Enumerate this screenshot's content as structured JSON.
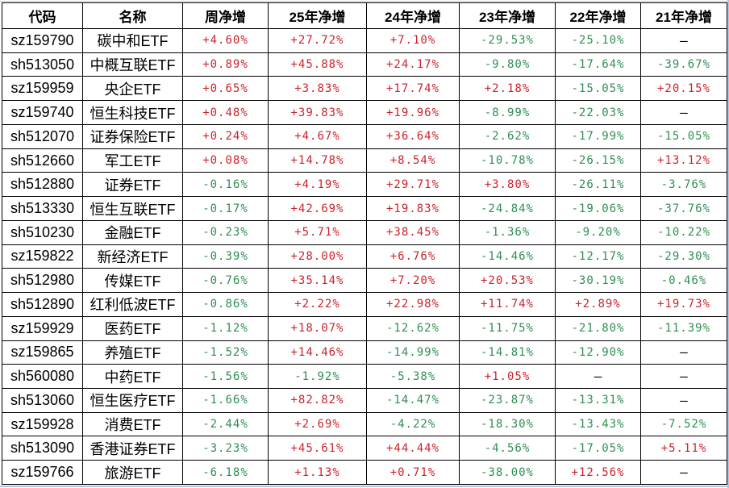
{
  "colors": {
    "positive": "#c9252d",
    "negative": "#2f8f52",
    "neutral": "#000000",
    "border": "#000000",
    "grid_hint": "#a9c6e3"
  },
  "chart_data": {
    "type": "table",
    "columns": [
      "代码",
      "名称",
      "周净增",
      "25年净增",
      "24年净增",
      "23年净增",
      "22年净增",
      "21年净增"
    ],
    "rows": [
      {
        "code": "sz159790",
        "name": "碳中和ETF",
        "values": [
          "+4.60%",
          "+27.72%",
          "+7.10%",
          "-29.53%",
          "-25.10%",
          "—"
        ]
      },
      {
        "code": "sh513050",
        "name": "中概互联ETF",
        "values": [
          "+0.89%",
          "+45.88%",
          "+24.17%",
          "-9.80%",
          "-17.64%",
          "-39.67%"
        ]
      },
      {
        "code": "sz159959",
        "name": "央企ETF",
        "values": [
          "+0.65%",
          "+3.83%",
          "+17.74%",
          "+2.18%",
          "-15.05%",
          "+20.15%"
        ]
      },
      {
        "code": "sz159740",
        "name": "恒生科技ETF",
        "values": [
          "+0.48%",
          "+39.83%",
          "+19.96%",
          "-8.99%",
          "-22.03%",
          "—"
        ]
      },
      {
        "code": "sh512070",
        "name": "证券保险ETF",
        "values": [
          "+0.24%",
          "+4.67%",
          "+36.64%",
          "-2.62%",
          "-17.99%",
          "-15.05%"
        ]
      },
      {
        "code": "sh512660",
        "name": "军工ETF",
        "values": [
          "+0.08%",
          "+14.78%",
          "+8.54%",
          "-10.78%",
          "-26.15%",
          "+13.12%"
        ]
      },
      {
        "code": "sh512880",
        "name": "证券ETF",
        "values": [
          "-0.16%",
          "+4.19%",
          "+29.71%",
          "+3.80%",
          "-26.11%",
          "-3.76%"
        ]
      },
      {
        "code": "sh513330",
        "name": "恒生互联ETF",
        "values": [
          "-0.17%",
          "+42.69%",
          "+19.83%",
          "-24.84%",
          "-19.06%",
          "-37.76%"
        ]
      },
      {
        "code": "sh510230",
        "name": "金融ETF",
        "values": [
          "-0.23%",
          "+5.71%",
          "+38.45%",
          "-1.36%",
          "-9.20%",
          "-10.22%"
        ]
      },
      {
        "code": "sz159822",
        "name": "新经济ETF",
        "values": [
          "-0.39%",
          "+28.00%",
          "+6.76%",
          "-14.46%",
          "-12.17%",
          "-29.30%"
        ]
      },
      {
        "code": "sh512980",
        "name": "传媒ETF",
        "values": [
          "-0.76%",
          "+35.14%",
          "+7.20%",
          "+20.53%",
          "-30.19%",
          "-0.46%"
        ]
      },
      {
        "code": "sh512890",
        "name": "红利低波ETF",
        "values": [
          "-0.86%",
          "+2.22%",
          "+22.98%",
          "+11.74%",
          "+2.89%",
          "+19.73%"
        ]
      },
      {
        "code": "sz159929",
        "name": "医药ETF",
        "values": [
          "-1.12%",
          "+18.07%",
          "-12.62%",
          "-11.75%",
          "-21.80%",
          "-11.39%"
        ]
      },
      {
        "code": "sz159865",
        "name": "养殖ETF",
        "values": [
          "-1.52%",
          "+14.46%",
          "-14.99%",
          "-14.81%",
          "-12.90%",
          "—"
        ]
      },
      {
        "code": "sh560080",
        "name": "中药ETF",
        "values": [
          "-1.56%",
          "-1.92%",
          "-5.38%",
          "+1.05%",
          "—",
          "—"
        ]
      },
      {
        "code": "sh513060",
        "name": "恒生医疗ETF",
        "values": [
          "-1.66%",
          "+82.82%",
          "-14.47%",
          "-23.87%",
          "-13.31%",
          "—"
        ]
      },
      {
        "code": "sz159928",
        "name": "消费ETF",
        "values": [
          "-2.44%",
          "+2.69%",
          "-4.22%",
          "-18.30%",
          "-13.43%",
          "-7.52%"
        ]
      },
      {
        "code": "sh513090",
        "name": "香港证券ETF",
        "values": [
          "-3.23%",
          "+45.61%",
          "+44.44%",
          "-4.56%",
          "-17.05%",
          "+5.11%"
        ]
      },
      {
        "code": "sz159766",
        "name": "旅游ETF",
        "values": [
          "-6.18%",
          "+1.13%",
          "+0.71%",
          "-38.00%",
          "+12.56%",
          "—"
        ]
      }
    ]
  }
}
